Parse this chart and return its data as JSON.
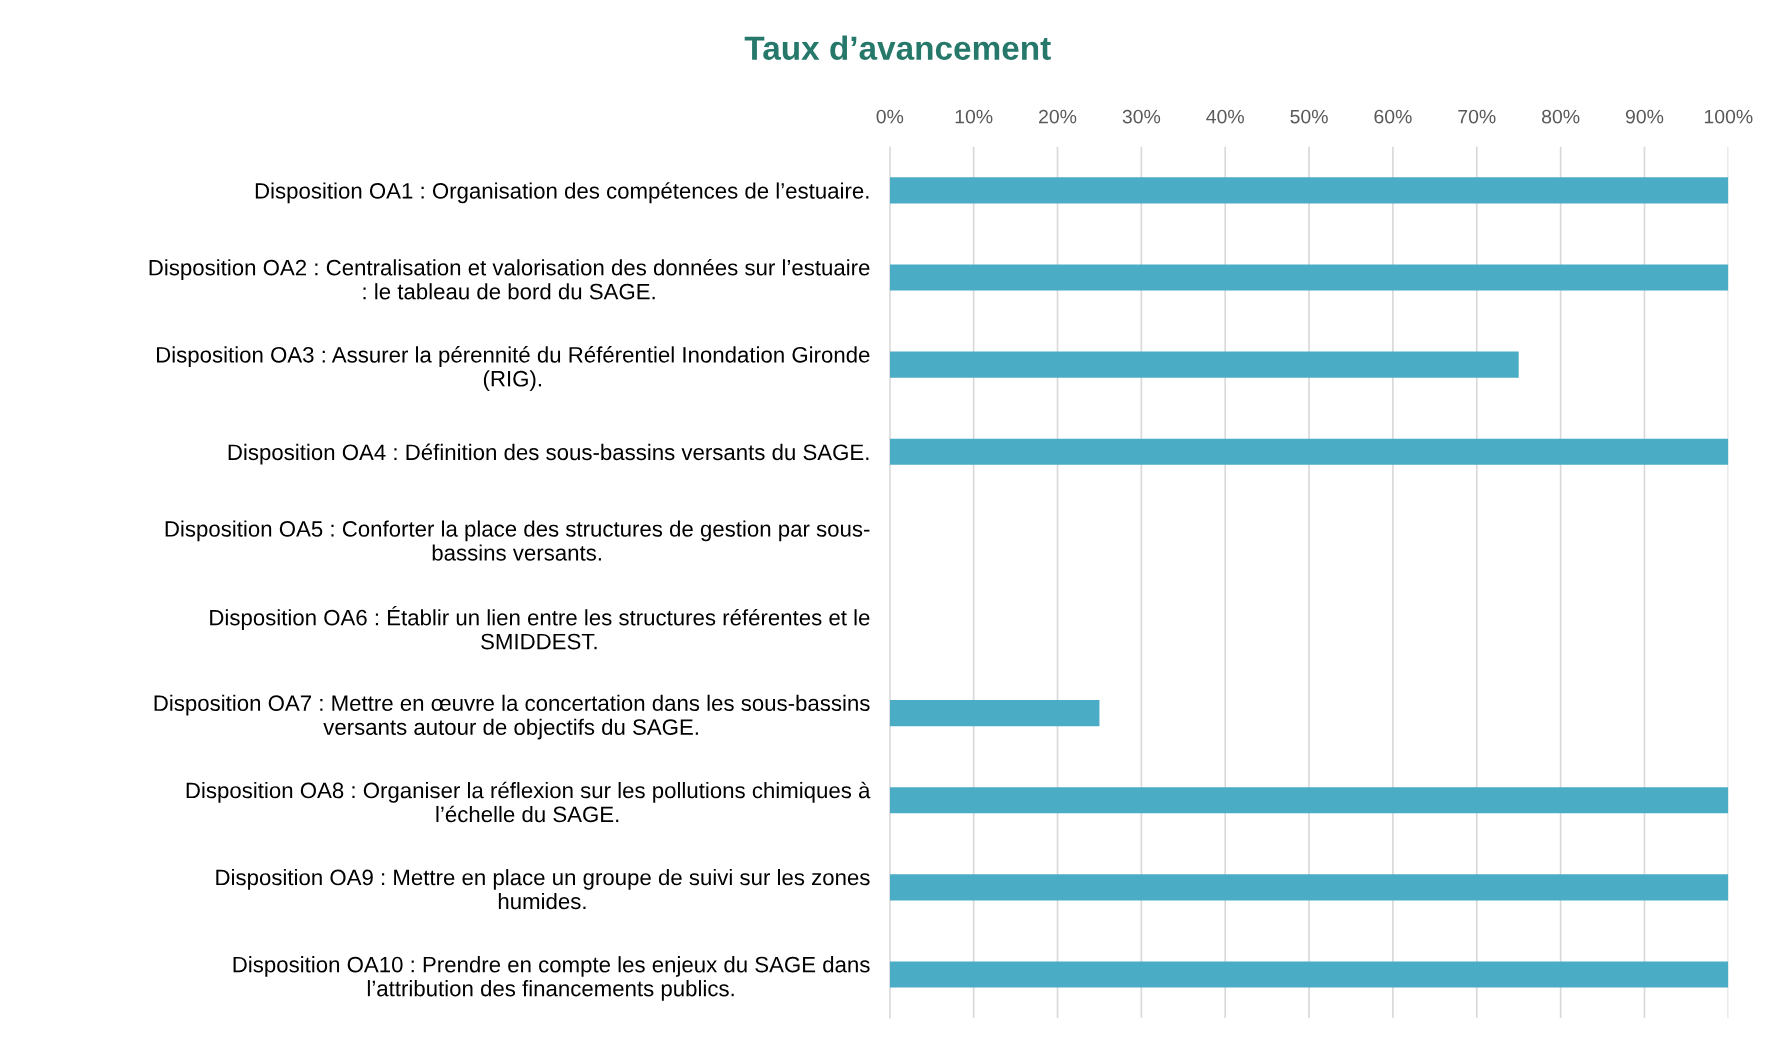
{
  "chart_data": {
    "type": "bar",
    "orientation": "horizontal",
    "title": "Taux d’avancement",
    "categories": [
      "Disposition OA1 : Organisation des compétences de l’estuaire.",
      "Disposition OA2 : Centralisation et valorisation des données sur l’estuaire\n: le tableau de bord du SAGE.",
      "Disposition OA3 : Assurer la pérennité du Référentiel Inondation Gironde\n(RIG).",
      "Disposition OA4 : Définition des sous-bassins versants du SAGE.",
      "Disposition OA5 : Conforter la place des structures de gestion par sous-\nbassins versants.",
      "Disposition OA6 : Établir un lien entre les structures référentes et le\nSMIDDEST.",
      "Disposition OA7 : Mettre en œuvre la concertation dans les sous-bassins\nversants autour de objectifs du SAGE.",
      "Disposition OA8 : Organiser la réflexion sur les pollutions chimiques à\nl’échelle du SAGE.",
      "Disposition OA9 : Mettre en place un groupe de suivi sur les zones\nhumides.",
      "Disposition OA10 : Prendre en compte les enjeux du SAGE dans\nl’attribution des financements publics."
    ],
    "values": [
      100,
      100,
      75,
      100,
      0,
      0,
      25,
      100,
      100,
      100
    ],
    "color": "#4bacc6",
    "xlim": [
      0,
      100
    ],
    "xticks": [
      {
        "value": 0,
        "label": "0%"
      },
      {
        "value": 10,
        "label": "10%"
      },
      {
        "value": 20,
        "label": "20%"
      },
      {
        "value": 30,
        "label": "30%"
      },
      {
        "value": 40,
        "label": "40%"
      },
      {
        "value": 50,
        "label": "50%"
      },
      {
        "value": 60,
        "label": "60%"
      },
      {
        "value": 70,
        "label": "70%"
      },
      {
        "value": 80,
        "label": "80%"
      },
      {
        "value": 90,
        "label": "90%"
      },
      {
        "value": 100,
        "label": "100%"
      }
    ],
    "grid": "x"
  }
}
